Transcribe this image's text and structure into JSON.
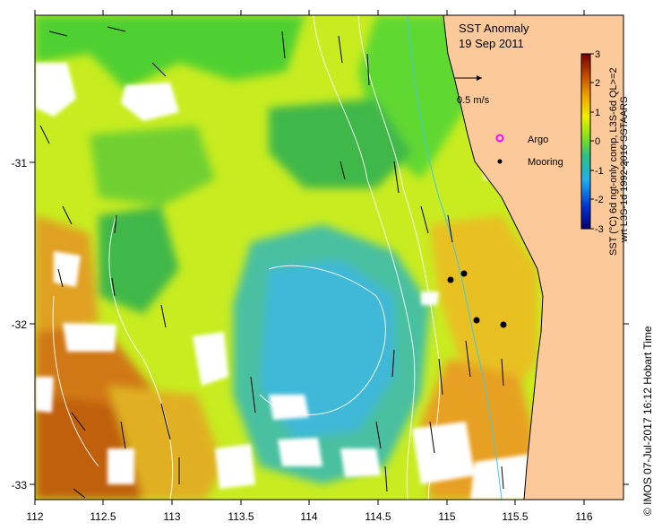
{
  "map": {
    "title": "SST Anomaly",
    "date": "19 Sep 2011",
    "x_ticks": [
      "112",
      "112.5",
      "113",
      "113.5",
      "114",
      "114.5",
      "115",
      "115.5",
      "116"
    ],
    "y_ticks": [
      "-31",
      "-32",
      "-33"
    ],
    "velocity_scale": "0.5 m/s",
    "legend": {
      "argo": "Argo",
      "mooring": "Mooring"
    },
    "colorbar": {
      "ticks": [
        "3",
        "2",
        "1",
        "0",
        "-1",
        "-2",
        "-3"
      ],
      "label_line1": "SST (°C) 6d ngt-only comp, L3S-6d QL>=2",
      "label_line2": "wrt L3S-1d 1992-2016 SSTAARS"
    },
    "credit": "© IMOS 07-Jul-2017 16:12 Hobart Time",
    "colors": {
      "land": "#fbc99a",
      "no_data": "#ffffff",
      "warm": "#c06010",
      "cool": "#40b8e8",
      "argo": "#ff00ff"
    }
  }
}
